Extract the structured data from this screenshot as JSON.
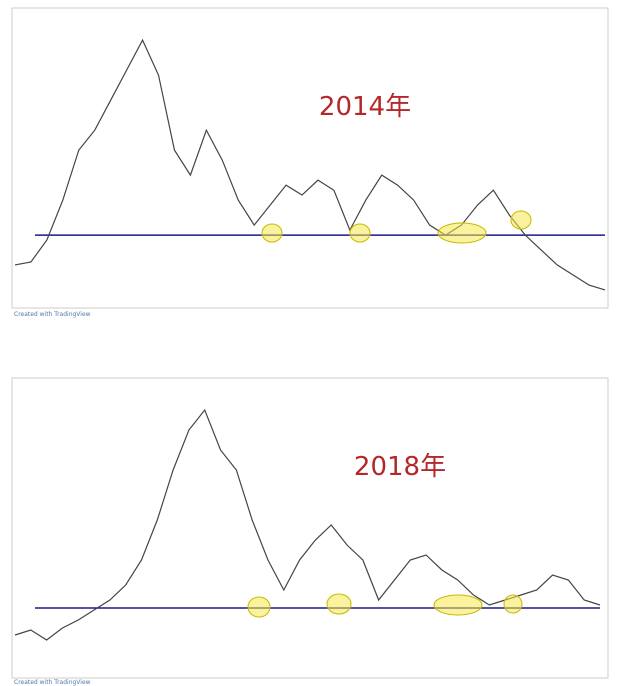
{
  "chart_data": [
    {
      "type": "line",
      "title": "2014年",
      "footer": "Created with TradingView",
      "values": [
        153,
        166,
        262,
        436,
        654,
        741,
        872,
        1003,
        1134,
        981,
        654,
        545,
        741,
        610,
        436,
        327,
        414,
        501,
        458,
        523,
        479,
        305,
        436,
        545,
        501,
        436,
        327,
        283,
        327,
        414,
        479,
        371,
        283,
        218,
        153,
        109,
        65,
        44
      ],
      "color": "#444444",
      "ylim": [
        0,
        1200
      ],
      "support": 283,
      "support_color": "#1a1a8c"
    },
    {
      "type": "line",
      "title": "2018年",
      "footer": "Created with TradingView",
      "values": [
        4073,
        4418,
        3727,
        4556,
        5109,
        5800,
        6491,
        7527,
        9255,
        12018,
        15473,
        18236,
        19618,
        16855,
        15473,
        12018,
        9255,
        7182,
        9255,
        10636,
        11673,
        10291,
        9255,
        6491,
        7873,
        9255,
        9600,
        8564,
        7873,
        6836,
        6145,
        6491,
        6836,
        7182,
        8218,
        7873,
        6491,
        6145
      ],
      "color": "#444444",
      "ylim": [
        2000,
        21000
      ],
      "support": 5940,
      "support_color": "#1a1a8c"
    }
  ]
}
